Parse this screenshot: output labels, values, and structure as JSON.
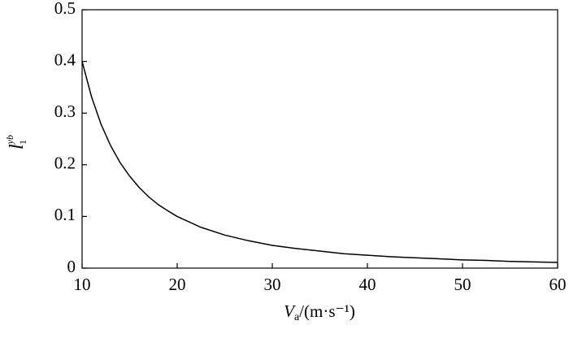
{
  "chart_data": {
    "type": "line",
    "xlabel": "V",
    "xlabel_sub": "a",
    "xlabel_unit": "/(m·s⁻¹)",
    "ylabel": "l",
    "ylabel_sup": "yb",
    "ylabel_sub": "1",
    "x": [
      10,
      11,
      12,
      13,
      14,
      15,
      16,
      17,
      18,
      19,
      20,
      22.5,
      25,
      27.5,
      30,
      32.5,
      35,
      37.5,
      40,
      42.5,
      45,
      47.5,
      50,
      52.5,
      55,
      57.5,
      60
    ],
    "series": [
      {
        "color": "#000000",
        "values": [
          0.4,
          0.331,
          0.278,
          0.237,
          0.204,
          0.178,
          0.156,
          0.138,
          0.123,
          0.111,
          0.1,
          0.079,
          0.064,
          0.053,
          0.044,
          0.038,
          0.033,
          0.028,
          0.025,
          0.022,
          0.02,
          0.018,
          0.016,
          0.015,
          0.013,
          0.012,
          0.011
        ]
      }
    ],
    "xlim": [
      10,
      60
    ],
    "xticks": [
      10,
      20,
      30,
      40,
      50,
      60
    ],
    "ylim": [
      0,
      0.5
    ],
    "yticks": [
      0,
      0.1,
      0.2,
      0.3,
      0.4,
      0.5
    ]
  }
}
